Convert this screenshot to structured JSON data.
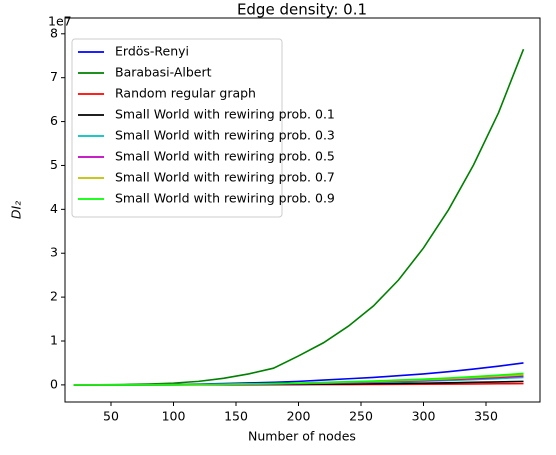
{
  "chart_data": {
    "type": "line",
    "title": "Edge density: 0.1",
    "x_label": "Number of nodes",
    "y_label": "DI₂",
    "y_offset_label": "1e7",
    "x": [
      20,
      40,
      60,
      80,
      100,
      120,
      140,
      160,
      180,
      200,
      220,
      240,
      260,
      280,
      300,
      320,
      340,
      360,
      380
    ],
    "xlim": [
      13.2,
      393.2
    ],
    "xticks": [
      50,
      100,
      150,
      200,
      250,
      300,
      350
    ],
    "ylim": [
      -0.39,
      8.36
    ],
    "yticks": [
      0,
      1,
      2,
      3,
      4,
      5,
      6,
      7,
      8
    ],
    "legend": "upper left",
    "grid": false,
    "series": [
      {
        "name": "Erdös-Renyi",
        "color": "#0000ff",
        "values": [
          0,
          0,
          0.002,
          0.005,
          0.01,
          0.02,
          0.03,
          0.045,
          0.06,
          0.08,
          0.11,
          0.14,
          0.17,
          0.21,
          0.25,
          0.3,
          0.36,
          0.425,
          0.5
        ]
      },
      {
        "name": "Barabasi-Albert",
        "color": "#008000",
        "values": [
          0,
          0.003,
          0.008,
          0.02,
          0.04,
          0.08,
          0.15,
          0.25,
          0.38,
          0.66,
          0.96,
          1.34,
          1.8,
          2.39,
          3.12,
          3.99,
          5.01,
          6.2,
          7.65
        ]
      },
      {
        "name": "Random regular graph",
        "color": "#ff0000",
        "values": [
          0,
          0,
          0,
          0,
          0.001,
          0.001,
          0.002,
          0.003,
          0.004,
          0.005,
          0.007,
          0.008,
          0.01,
          0.013,
          0.015,
          0.018,
          0.022,
          0.026,
          0.03
        ]
      },
      {
        "name": "Small World with rewiring prob. 0.1",
        "color": "#000000",
        "values": [
          0,
          0,
          0,
          0.001,
          0.002,
          0.003,
          0.005,
          0.007,
          0.01,
          0.013,
          0.018,
          0.022,
          0.027,
          0.034,
          0.04,
          0.048,
          0.058,
          0.068,
          0.08
        ]
      },
      {
        "name": "Small World with rewiring prob. 0.3",
        "color": "#00bfbf",
        "values": [
          0,
          0,
          0.001,
          0.002,
          0.003,
          0.007,
          0.01,
          0.015,
          0.02,
          0.027,
          0.037,
          0.048,
          0.058,
          0.071,
          0.085,
          0.102,
          0.122,
          0.145,
          0.17
        ]
      },
      {
        "name": "Small World with rewiring prob. 0.5",
        "color": "#bf00bf",
        "values": [
          0,
          0,
          0.001,
          0.002,
          0.004,
          0.008,
          0.012,
          0.018,
          0.024,
          0.032,
          0.044,
          0.056,
          0.068,
          0.084,
          0.1,
          0.12,
          0.144,
          0.17,
          0.2
        ]
      },
      {
        "name": "Small World with rewiring prob. 0.7",
        "color": "#bfbf00",
        "values": [
          0,
          0,
          0.001,
          0.002,
          0.005,
          0.009,
          0.014,
          0.021,
          0.028,
          0.037,
          0.051,
          0.064,
          0.078,
          0.097,
          0.115,
          0.138,
          0.166,
          0.196,
          0.23
        ]
      },
      {
        "name": "Small World with rewiring prob. 0.9",
        "color": "#00ff00",
        "values": [
          0,
          0,
          0.001,
          0.003,
          0.005,
          0.01,
          0.016,
          0.023,
          0.031,
          0.042,
          0.057,
          0.073,
          0.088,
          0.109,
          0.13,
          0.156,
          0.187,
          0.221,
          0.26
        ]
      }
    ]
  }
}
